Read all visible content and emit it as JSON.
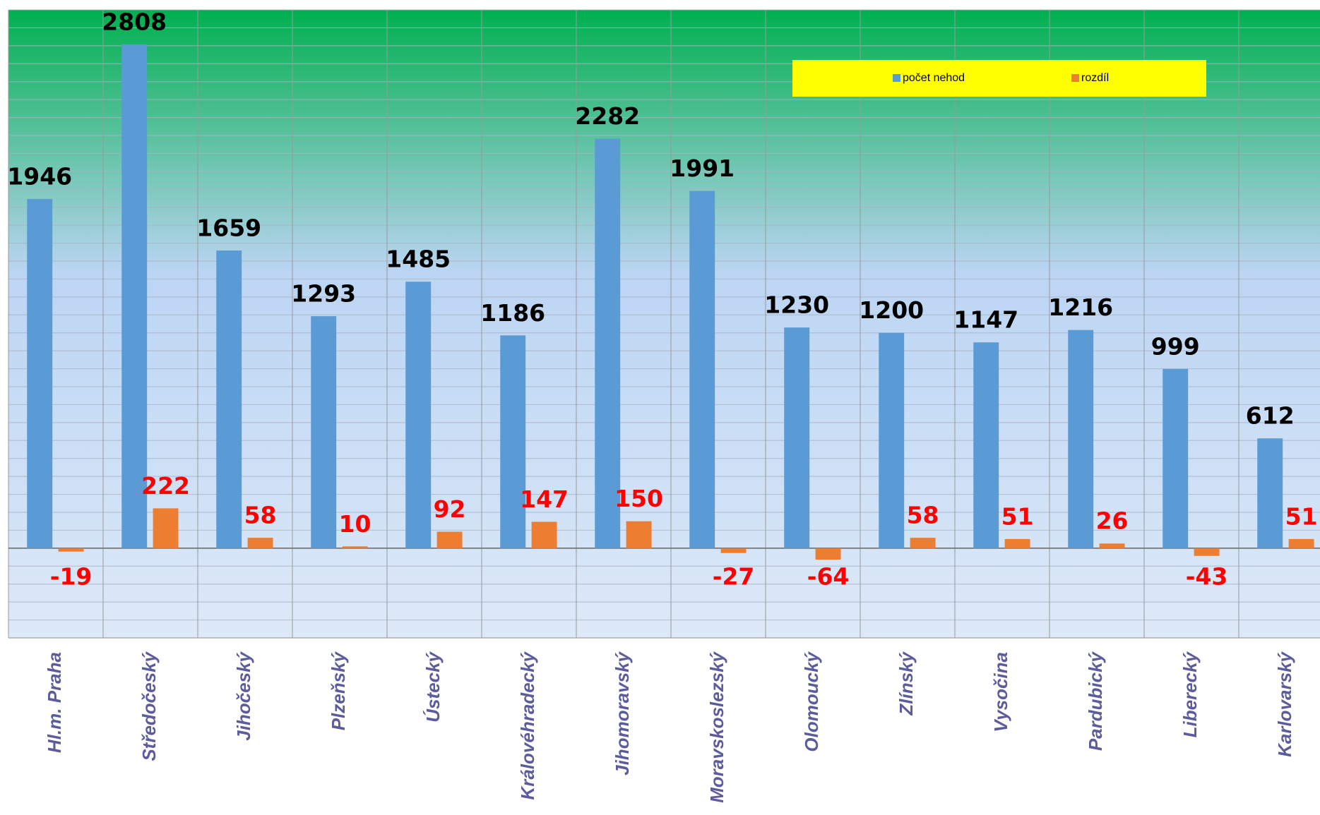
{
  "chart_data": {
    "type": "bar",
    "categories": [
      "Hl.m. Praha",
      "Středočeský",
      "Jihočeský",
      "Plzeňský",
      "Ústecký",
      "Královéhradecký",
      "Jihomoravský",
      "Moravskoslezský",
      "Olomoucký",
      "Zlínský",
      "Vysočina",
      "Pardubický",
      "Liberecký",
      "Karlovarský"
    ],
    "series": [
      {
        "name": "počet nehod",
        "color": "#5b9bd5",
        "label_color": "#000000",
        "values": [
          1946,
          2808,
          1659,
          1293,
          1485,
          1186,
          2282,
          1991,
          1230,
          1200,
          1147,
          1216,
          999,
          612
        ]
      },
      {
        "name": "rozdíl",
        "color": "#ed7d31",
        "label_color": "#ff0000",
        "values": [
          -19,
          222,
          58,
          10,
          92,
          147,
          150,
          -27,
          -64,
          58,
          51,
          26,
          -43,
          51
        ]
      }
    ],
    "ylim": [
      -500,
      3000
    ],
    "yticks": [
      -500,
      -400,
      -300,
      -200,
      -100,
      0,
      100,
      200,
      300,
      400,
      500,
      600,
      700,
      800,
      900,
      1000,
      1100,
      1200,
      1300,
      1400,
      1500,
      1600,
      1700,
      1800,
      1900,
      2000,
      2100,
      2200,
      2300,
      2400,
      2500,
      2600,
      2700,
      2800,
      2900,
      3000
    ],
    "grid": true,
    "legend": "top"
  }
}
